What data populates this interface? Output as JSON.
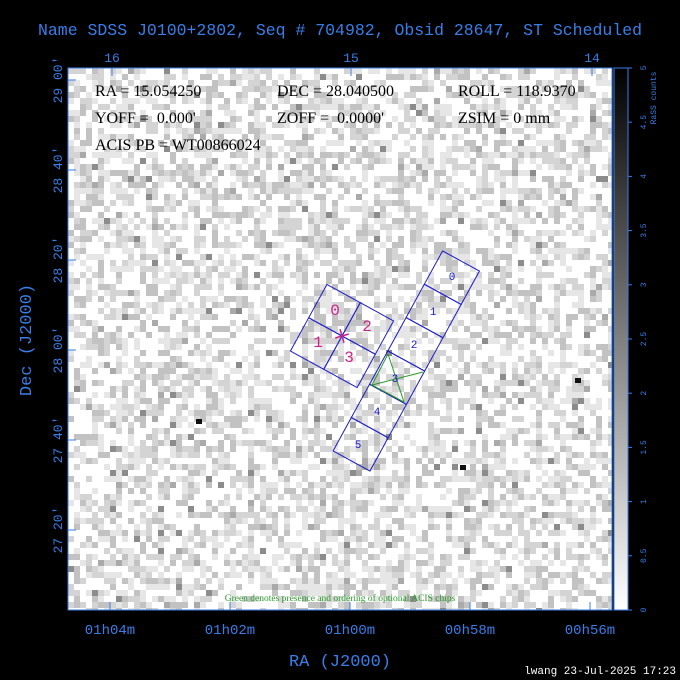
{
  "title": "Name SDSS J0100+2802, Seq # 704982, Obsid 28647, ST Scheduled",
  "plot": {
    "info": [
      "RA = 15.054250",
      "DEC = 28.040500",
      "ROLL = 118.9370",
      "YOFF =  0.000'",
      "ZOFF =  0.0000'",
      "ZSIM = 0 mm",
      "ACIS PB = WT00866024"
    ],
    "note": "Green denotes presence and ordering of optional ACIS chips",
    "acis_i_chips": [
      "0",
      "1",
      "2",
      "3"
    ],
    "acis_s_chips": [
      "0",
      "1",
      "2",
      "3",
      "4",
      "5"
    ]
  },
  "axes": {
    "top_ticks": [
      "16",
      "15",
      "14"
    ],
    "bottom_ticks": [
      "01h04m",
      "01h02m",
      "01h00m",
      "00h58m",
      "00h56m"
    ],
    "left_ticks": [
      "29 00'",
      "28 40'",
      "28 20'",
      "28 00'",
      "27 40'",
      "27 20'"
    ],
    "x_label": "RA (J2000)",
    "y_label": "Dec (J2000)"
  },
  "colorbar": {
    "label": "RaSS counts",
    "lim": [
      0,
      5
    ],
    "ticks": [
      0,
      0.5,
      1,
      1.5,
      2,
      2.5,
      3,
      3.5,
      4,
      4.5,
      5
    ]
  },
  "footer": "lwang 23-Jul-2025 17:23"
}
